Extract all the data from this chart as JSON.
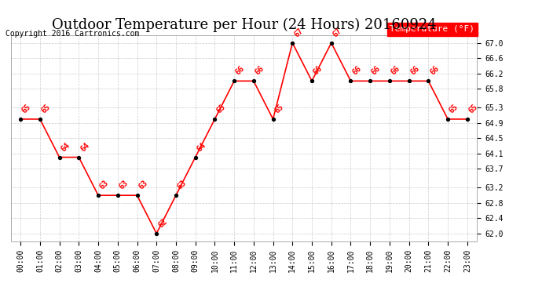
{
  "title": "Outdoor Temperature per Hour (24 Hours) 20160924",
  "copyright": "Copyright 2016 Cartronics.com",
  "legend_label": "Temperature (°F)",
  "hours": [
    "00:00",
    "01:00",
    "02:00",
    "03:00",
    "04:00",
    "05:00",
    "06:00",
    "07:00",
    "08:00",
    "09:00",
    "10:00",
    "11:00",
    "12:00",
    "13:00",
    "14:00",
    "15:00",
    "16:00",
    "17:00",
    "18:00",
    "19:00",
    "20:00",
    "21:00",
    "22:00",
    "23:00"
  ],
  "temps": [
    65,
    65,
    64,
    64,
    63,
    63,
    63,
    62,
    63,
    64,
    65,
    66,
    66,
    65,
    67,
    66,
    67,
    66,
    66,
    66,
    66,
    66,
    65,
    65
  ],
  "ylim": [
    61.8,
    67.2
  ],
  "yticks": [
    62.0,
    62.4,
    62.8,
    63.2,
    63.7,
    64.1,
    64.5,
    64.9,
    65.3,
    65.8,
    66.2,
    66.6,
    67.0
  ],
  "line_color": "red",
  "marker_color": "black",
  "bg_color": "white",
  "grid_color": "#cccccc",
  "annotation_color": "red",
  "title_fontsize": 13,
  "legend_bg": "red",
  "legend_text_color": "white"
}
